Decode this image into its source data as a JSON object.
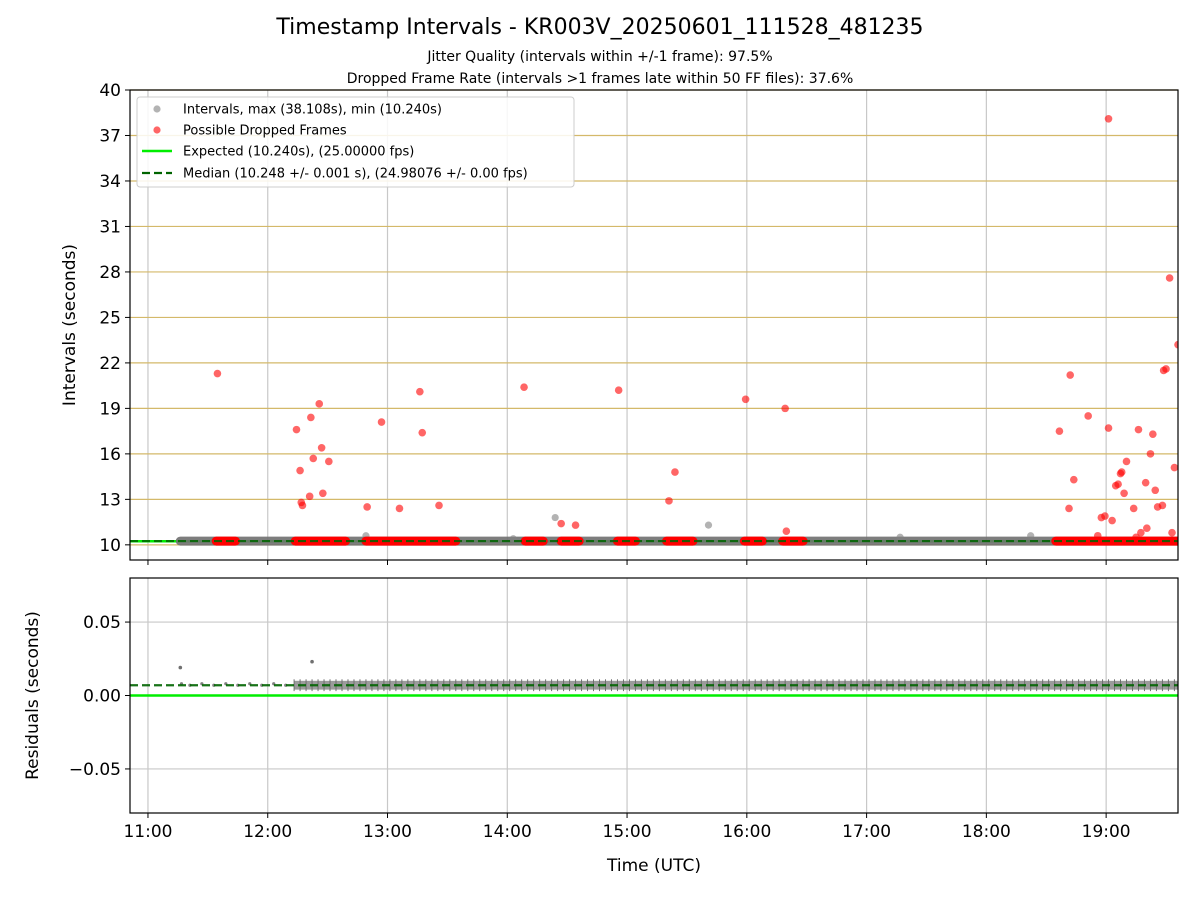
{
  "chart_data": [
    {
      "type": "scatter",
      "title": "Timestamp Intervals - KR003V_20250601_111528_481235",
      "subtitle_1": "Jitter Quality (intervals within +/-1 frame): 97.5%",
      "subtitle_2": "Dropped Frame Rate (intervals >1 frames late within 50 FF files): 37.6%",
      "ylabel": "Intervals (seconds)",
      "ylim": [
        9,
        40
      ],
      "xlim_hours": [
        10.85,
        19.6
      ],
      "yticks": [
        "10",
        "13",
        "16",
        "19",
        "22",
        "25",
        "28",
        "31",
        "34",
        "37",
        "40"
      ],
      "grid": true,
      "legend_position": "upper-left",
      "colors": {
        "intervals": "#808080",
        "dropped": "#ff0000",
        "expected": "#00ee00",
        "median": "#006400",
        "gridline_h": "#d4b96a"
      },
      "legend": [
        "Intervals, max (38.108s), min (10.240s)",
        "Possible Dropped Frames",
        "Expected (10.240s), (25.00000 fps)",
        "Median (10.248 +/- 0.001 s), (24.98076 +/- 0.00 fps)"
      ],
      "expected_value": 10.24,
      "median_value": 10.248,
      "intervals_band": {
        "from_hour": 11.27,
        "to_hour": 19.6,
        "value": 10.248
      },
      "intervals_outliers": [
        {
          "t": 12.82,
          "v": 10.6
        },
        {
          "t": 14.05,
          "v": 10.4
        },
        {
          "t": 14.4,
          "v": 11.8
        },
        {
          "t": 15.68,
          "v": 11.3
        },
        {
          "t": 17.28,
          "v": 10.5
        },
        {
          "t": 18.37,
          "v": 10.6
        }
      ],
      "dropped_bands": [
        [
          11.57,
          11.73
        ],
        [
          12.23,
          12.65
        ],
        [
          12.82,
          13.57
        ],
        [
          14.15,
          14.3
        ],
        [
          14.45,
          14.6
        ],
        [
          14.92,
          15.07
        ],
        [
          15.33,
          15.55
        ],
        [
          15.98,
          16.13
        ],
        [
          16.3,
          16.47
        ],
        [
          18.58,
          19.6
        ]
      ],
      "dropped_outliers": [
        {
          "t": 11.58,
          "v": 21.3
        },
        {
          "t": 12.24,
          "v": 17.6
        },
        {
          "t": 12.27,
          "v": 14.9
        },
        {
          "t": 12.28,
          "v": 12.8
        },
        {
          "t": 12.29,
          "v": 12.6
        },
        {
          "t": 12.35,
          "v": 13.2
        },
        {
          "t": 12.36,
          "v": 18.4
        },
        {
          "t": 12.38,
          "v": 15.7
        },
        {
          "t": 12.43,
          "v": 19.3
        },
        {
          "t": 12.45,
          "v": 16.4
        },
        {
          "t": 12.46,
          "v": 13.4
        },
        {
          "t": 12.51,
          "v": 15.5
        },
        {
          "t": 12.83,
          "v": 12.5
        },
        {
          "t": 12.95,
          "v": 18.1
        },
        {
          "t": 13.1,
          "v": 12.4
        },
        {
          "t": 13.27,
          "v": 20.1
        },
        {
          "t": 13.29,
          "v": 17.4
        },
        {
          "t": 13.43,
          "v": 12.6
        },
        {
          "t": 14.14,
          "v": 20.4
        },
        {
          "t": 14.45,
          "v": 11.4
        },
        {
          "t": 14.57,
          "v": 11.3
        },
        {
          "t": 14.93,
          "v": 20.2
        },
        {
          "t": 15.35,
          "v": 12.9
        },
        {
          "t": 15.4,
          "v": 14.8
        },
        {
          "t": 15.99,
          "v": 19.6
        },
        {
          "t": 16.32,
          "v": 19.0
        },
        {
          "t": 16.33,
          "v": 10.9
        },
        {
          "t": 18.61,
          "v": 17.5
        },
        {
          "t": 18.69,
          "v": 12.4
        },
        {
          "t": 18.7,
          "v": 21.2
        },
        {
          "t": 18.73,
          "v": 14.3
        },
        {
          "t": 18.85,
          "v": 18.5
        },
        {
          "t": 18.93,
          "v": 10.6
        },
        {
          "t": 18.96,
          "v": 11.8
        },
        {
          "t": 18.99,
          "v": 11.9
        },
        {
          "t": 19.02,
          "v": 38.1
        },
        {
          "t": 19.02,
          "v": 17.7
        },
        {
          "t": 19.05,
          "v": 11.6
        },
        {
          "t": 19.08,
          "v": 13.9
        },
        {
          "t": 19.1,
          "v": 14.0
        },
        {
          "t": 19.12,
          "v": 14.7
        },
        {
          "t": 19.13,
          "v": 14.8
        },
        {
          "t": 19.15,
          "v": 13.4
        },
        {
          "t": 19.17,
          "v": 15.5
        },
        {
          "t": 19.23,
          "v": 12.4
        },
        {
          "t": 19.25,
          "v": 10.5
        },
        {
          "t": 19.27,
          "v": 17.6
        },
        {
          "t": 19.29,
          "v": 10.8
        },
        {
          "t": 19.33,
          "v": 14.1
        },
        {
          "t": 19.34,
          "v": 11.1
        },
        {
          "t": 19.37,
          "v": 16.0
        },
        {
          "t": 19.39,
          "v": 17.3
        },
        {
          "t": 19.41,
          "v": 13.6
        },
        {
          "t": 19.43,
          "v": 12.5
        },
        {
          "t": 19.47,
          "v": 12.6
        },
        {
          "t": 19.48,
          "v": 21.5
        },
        {
          "t": 19.5,
          "v": 21.6
        },
        {
          "t": 19.53,
          "v": 27.6
        },
        {
          "t": 19.55,
          "v": 10.8
        },
        {
          "t": 19.57,
          "v": 15.1
        },
        {
          "t": 19.6,
          "v": 23.2
        }
      ]
    },
    {
      "type": "scatter",
      "ylabel": "Residuals (seconds)",
      "xlabel": "Time (UTC)",
      "ylim": [
        -0.08,
        0.08
      ],
      "yticks": [
        {
          "value": 0.05,
          "label": "0.05"
        },
        {
          "value": 0.0,
          "label": "0.00"
        },
        {
          "value": -0.05,
          "label": "−0.05"
        }
      ],
      "xticks": [
        {
          "hour": 11,
          "label": "11:00"
        },
        {
          "hour": 12,
          "label": "12:00"
        },
        {
          "hour": 13,
          "label": "13:00"
        },
        {
          "hour": 14,
          "label": "14:00"
        },
        {
          "hour": 15,
          "label": "15:00"
        },
        {
          "hour": 16,
          "label": "16:00"
        },
        {
          "hour": 17,
          "label": "17:00"
        },
        {
          "hour": 18,
          "label": "18:00"
        },
        {
          "hour": 19,
          "label": "19:00"
        }
      ],
      "grid": true,
      "expected_residual": 0.0,
      "median_residual": 0.007,
      "residual_band": {
        "from_hour": 12.22,
        "to_hour": 19.6,
        "low": 0.004,
        "high": 0.01
      },
      "residual_sparse": [
        {
          "t": 11.28,
          "v": 0.008
        },
        {
          "t": 11.35,
          "v": 0.007
        },
        {
          "t": 11.45,
          "v": 0.008
        },
        {
          "t": 11.55,
          "v": 0.007
        },
        {
          "t": 11.65,
          "v": 0.008
        },
        {
          "t": 11.75,
          "v": 0.007
        },
        {
          "t": 11.85,
          "v": 0.008
        },
        {
          "t": 11.95,
          "v": 0.007
        },
        {
          "t": 12.05,
          "v": 0.008
        },
        {
          "t": 12.15,
          "v": 0.007
        }
      ],
      "residual_outliers": [
        {
          "t": 11.27,
          "v": 0.019
        },
        {
          "t": 12.37,
          "v": 0.023
        }
      ]
    }
  ]
}
